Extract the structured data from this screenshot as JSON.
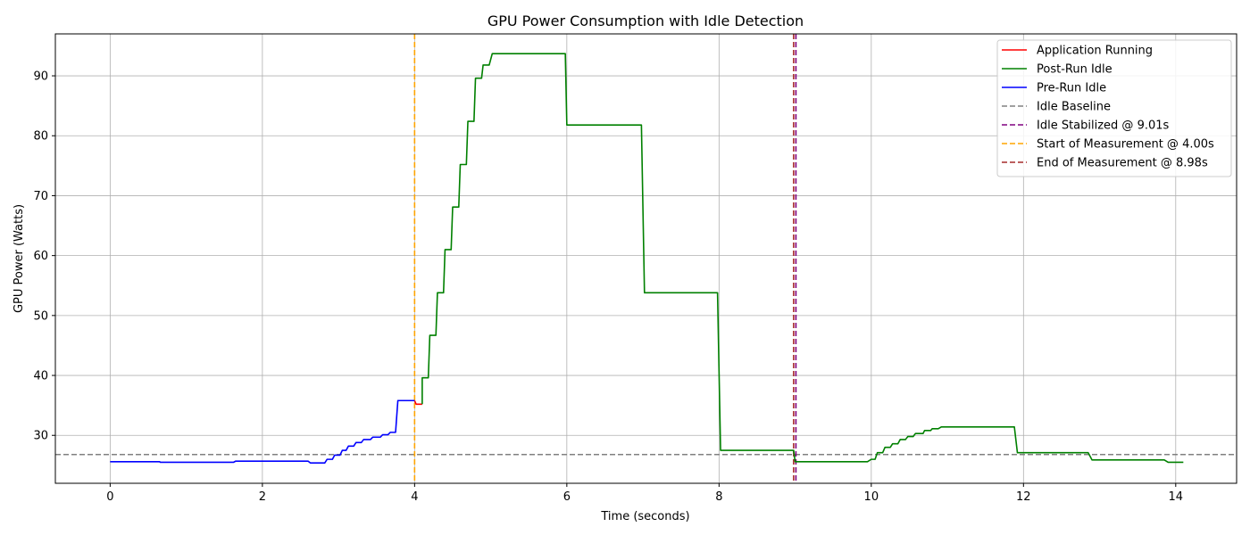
{
  "chart_data": {
    "type": "line",
    "title": "GPU Power Consumption with Idle Detection",
    "xlabel": "Time (seconds)",
    "ylabel": "GPU Power (Watts)",
    "xlim": [
      -0.72,
      14.8
    ],
    "ylim": [
      22.0,
      97.0
    ],
    "xticks": [
      0,
      2,
      4,
      6,
      8,
      10,
      12,
      14
    ],
    "yticks": [
      30,
      40,
      50,
      60,
      70,
      80,
      90
    ],
    "grid": true,
    "legend_position": "top-right",
    "series": [
      {
        "name": "Application Running",
        "color": "#ff0000",
        "style": "solid",
        "points": [
          [
            4.0,
            35.8
          ],
          [
            4.02,
            35.2
          ],
          [
            4.1,
            35.2
          ]
        ]
      },
      {
        "name": "Post-Run Idle",
        "color": "#008000",
        "style": "solid",
        "points": [
          [
            4.1,
            35.2
          ],
          [
            4.1,
            39.6
          ],
          [
            4.18,
            39.6
          ],
          [
            4.2,
            46.7
          ],
          [
            4.28,
            46.7
          ],
          [
            4.3,
            53.8
          ],
          [
            4.38,
            53.8
          ],
          [
            4.4,
            61.0
          ],
          [
            4.48,
            61.0
          ],
          [
            4.5,
            68.1
          ],
          [
            4.58,
            68.1
          ],
          [
            4.6,
            75.2
          ],
          [
            4.68,
            75.2
          ],
          [
            4.7,
            82.4
          ],
          [
            4.78,
            82.4
          ],
          [
            4.8,
            89.6
          ],
          [
            4.88,
            89.6
          ],
          [
            4.9,
            91.8
          ],
          [
            4.98,
            91.8
          ],
          [
            5.02,
            93.7
          ],
          [
            5.98,
            93.7
          ],
          [
            6.0,
            81.8
          ],
          [
            6.98,
            81.8
          ],
          [
            7.02,
            53.8
          ],
          [
            7.98,
            53.8
          ],
          [
            8.02,
            27.5
          ],
          [
            8.98,
            27.5
          ],
          [
            9.0,
            25.6
          ],
          [
            9.95,
            25.6
          ],
          [
            10.0,
            26.0
          ],
          [
            10.05,
            26.0
          ],
          [
            10.08,
            27.1
          ],
          [
            10.15,
            27.1
          ],
          [
            10.18,
            28.0
          ],
          [
            10.25,
            28.0
          ],
          [
            10.28,
            28.6
          ],
          [
            10.35,
            28.6
          ],
          [
            10.38,
            29.3
          ],
          [
            10.45,
            29.3
          ],
          [
            10.48,
            29.8
          ],
          [
            10.55,
            29.8
          ],
          [
            10.58,
            30.3
          ],
          [
            10.68,
            30.3
          ],
          [
            10.7,
            30.8
          ],
          [
            10.78,
            30.8
          ],
          [
            10.8,
            31.1
          ],
          [
            10.88,
            31.1
          ],
          [
            10.92,
            31.4
          ],
          [
            11.88,
            31.4
          ],
          [
            11.92,
            27.1
          ],
          [
            12.85,
            27.1
          ],
          [
            12.9,
            25.9
          ],
          [
            13.85,
            25.9
          ],
          [
            13.9,
            25.5
          ],
          [
            14.1,
            25.5
          ]
        ]
      },
      {
        "name": "Pre-Run Idle",
        "color": "#0000ff",
        "style": "solid",
        "points": [
          [
            0.0,
            25.6
          ],
          [
            0.65,
            25.6
          ],
          [
            0.66,
            25.5
          ],
          [
            1.62,
            25.5
          ],
          [
            1.65,
            25.7
          ],
          [
            2.6,
            25.7
          ],
          [
            2.63,
            25.4
          ],
          [
            2.82,
            25.4
          ],
          [
            2.85,
            26.0
          ],
          [
            2.92,
            26.0
          ],
          [
            2.95,
            26.7
          ],
          [
            3.02,
            26.7
          ],
          [
            3.05,
            27.5
          ],
          [
            3.1,
            27.5
          ],
          [
            3.13,
            28.2
          ],
          [
            3.2,
            28.2
          ],
          [
            3.23,
            28.8
          ],
          [
            3.3,
            28.8
          ],
          [
            3.33,
            29.3
          ],
          [
            3.42,
            29.3
          ],
          [
            3.45,
            29.7
          ],
          [
            3.55,
            29.7
          ],
          [
            3.58,
            30.1
          ],
          [
            3.65,
            30.1
          ],
          [
            3.68,
            30.5
          ],
          [
            3.75,
            30.5
          ],
          [
            3.78,
            35.8
          ],
          [
            4.0,
            35.8
          ]
        ]
      },
      {
        "name": "Idle Baseline",
        "color": "#808080",
        "style": "dashed",
        "hline": 26.8
      },
      {
        "name": "Idle Stabilized @ 9.01s",
        "color": "#800080",
        "style": "dashed",
        "vline": 9.01
      },
      {
        "name": "Start of Measurement @ 4.00s",
        "color": "#ffa500",
        "style": "dashed",
        "vline": 4.0
      },
      {
        "name": "End of Measurement @ 8.98s",
        "color": "#a52a2a",
        "style": "dashed",
        "vline": 8.98
      }
    ]
  }
}
